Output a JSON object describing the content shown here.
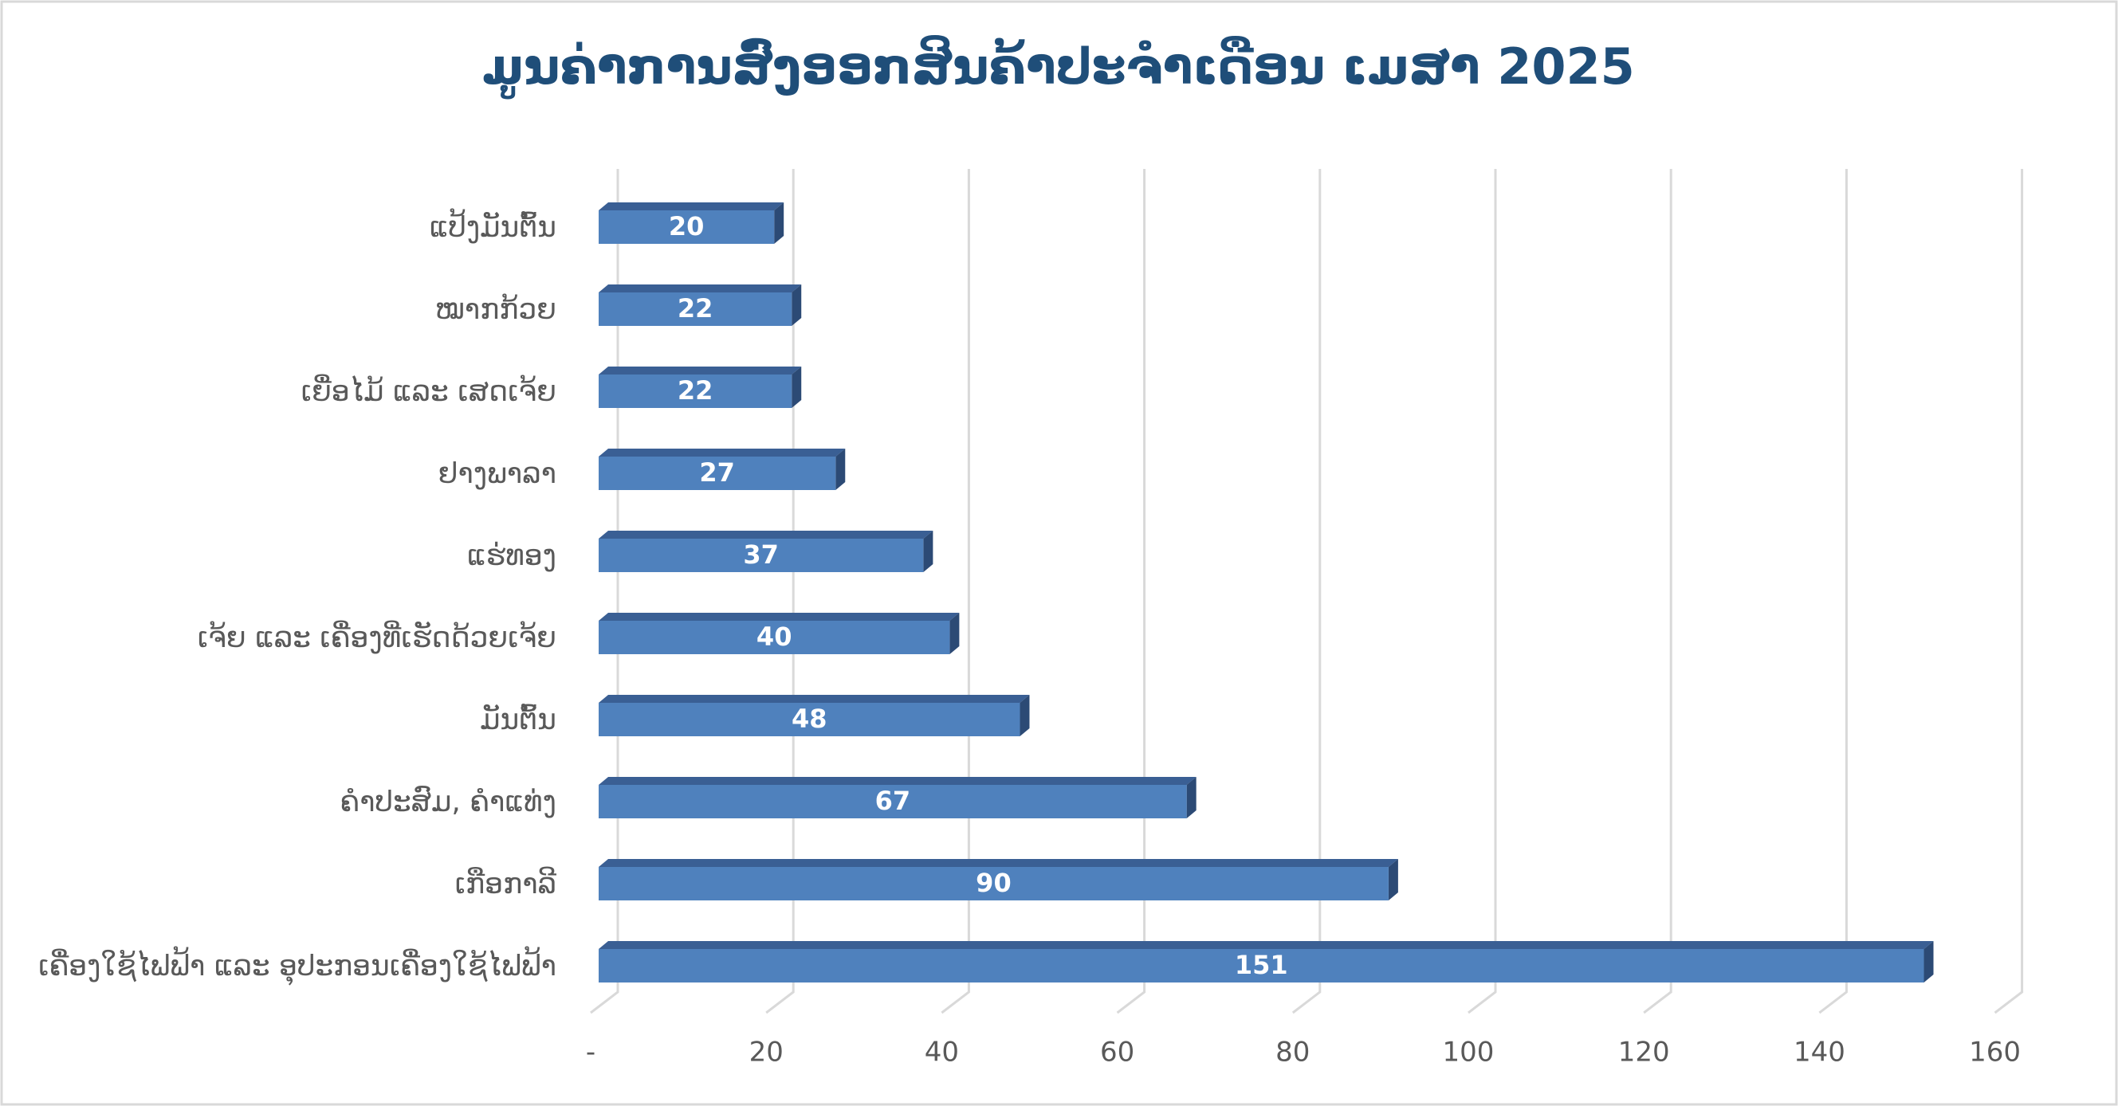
{
  "chart_data": {
    "type": "bar",
    "orientation": "horizontal",
    "title": "ມູນຄ່າການສົ່ງອອກສິນຄ້າປະຈຳເດືອນ ເມສາ 2025",
    "categories": [
      "ແປ້ງມັນຕົ້ນ",
      "ໝາກກ້ວຍ",
      "ເຍື່ອໄມ້ ແລະ ເສດເຈ້ຍ",
      "ຢາງພາລາ",
      "ແຮ່ທອງ",
      "ເຈ້ຍ ແລະ ເຄື່ອງທີ່ເຮັດດ້ວຍເຈ້ຍ",
      "ມັນຕົ້ນ",
      "ຄຳປະສົມ, ຄຳແທ່ງ",
      "ເກືອກາລີ",
      "ເຄື່ອງໃຊ້ໄຟຟ້າ ແລະ ອຸປະກອນເຄື່ອງໃຊ້ໄຟຟ້າ"
    ],
    "values": [
      20,
      22,
      22,
      27,
      37,
      40,
      48,
      67,
      90,
      151
    ],
    "color": "#4f81bd",
    "xlim": [
      0,
      160
    ],
    "xticks": [
      {
        "value": 0,
        "label": "-"
      },
      20,
      40,
      60,
      80,
      100,
      120,
      140,
      160
    ],
    "grid": true
  }
}
